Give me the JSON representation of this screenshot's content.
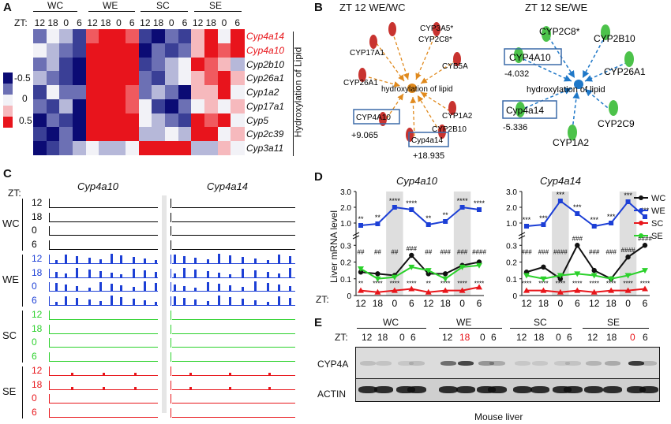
{
  "panel_labels": {
    "a": "A",
    "b": "B",
    "c": "C",
    "d": "D",
    "e": "E"
  },
  "panelA": {
    "groups": [
      "WC",
      "WE",
      "SC",
      "SE"
    ],
    "zt_prefix": "ZT:",
    "zt": [
      "12",
      "18",
      "0",
      "6",
      "12",
      "18",
      "0",
      "6",
      "12",
      "18",
      "0",
      "6",
      "12",
      "18",
      "0",
      "6"
    ],
    "genes": [
      "Cyp4a14",
      "Cyp4a10",
      "Cyp2b10",
      "Cyp26a1",
      "Cyp1a2",
      "Cyp17a1",
      "Cyp5",
      "Cyp2c39",
      "Cyp3a11"
    ],
    "highlight_genes": [
      "Cyp4a14",
      "Cyp4a10"
    ],
    "legend": [
      "-0.5",
      "0",
      "0.5"
    ],
    "side_label": "Hydroxylation of Lipid",
    "colors": {
      "deep_red": "#e8141c",
      "red": "#f05a5f",
      "light_red": "#f6b9bd",
      "white": "#f2f2f7",
      "light_blue": "#b6b8d9",
      "blue": "#6c70b4",
      "mid_blue": "#3a3f96",
      "deep_blue": "#0b0b74"
    },
    "matrix": [
      [
        "b",
        "w",
        "lb",
        "B",
        "r",
        "R",
        "R",
        "r",
        "B",
        "D",
        "b",
        "B",
        "lr",
        "R",
        "w",
        "R"
      ],
      [
        "w",
        "lb",
        "b",
        "B",
        "R",
        "R",
        "R",
        "R",
        "D",
        "b",
        "B",
        "b",
        "lr",
        "R",
        "r",
        "R"
      ],
      [
        "b",
        "lb",
        "B",
        "D",
        "R",
        "R",
        "R",
        "R",
        "B",
        "b",
        "lb",
        "w",
        "R",
        "r",
        "lr",
        "lb"
      ],
      [
        "lb",
        "b",
        "B",
        "D",
        "R",
        "R",
        "R",
        "R",
        "b",
        "B",
        "lb",
        "w",
        "lr",
        "r",
        "R",
        "lr"
      ],
      [
        "B",
        "w",
        "b",
        "b",
        "R",
        "R",
        "R",
        "r",
        "b",
        "lb",
        "b",
        "D",
        "lr",
        "lr",
        "R",
        "w"
      ],
      [
        "b",
        "B",
        "lb",
        "D",
        "R",
        "R",
        "R",
        "r",
        "w",
        "B",
        "D",
        "b",
        "w",
        "lr",
        "w",
        "lr"
      ],
      [
        "D",
        "b",
        "B",
        "D",
        "R",
        "R",
        "R",
        "R",
        "w",
        "lb",
        "b",
        "B",
        "R",
        "r",
        "R",
        "w"
      ],
      [
        "B",
        "D",
        "b",
        "D",
        "R",
        "R",
        "R",
        "R",
        "lb",
        "lb",
        "w",
        "lb",
        "R",
        "R",
        "w",
        "lr"
      ],
      [
        "D",
        "B",
        "b",
        "lb",
        "w",
        "lb",
        "lb",
        "w",
        "R",
        "R",
        "R",
        "R",
        "lb",
        "lb",
        "lr",
        "w"
      ]
    ]
  },
  "panelB": {
    "left": {
      "title": "ZT 12 WE/WC",
      "center": "hydroxylation of lipid",
      "nodes": [
        "CYP3A5*",
        "CYP2C8*",
        "CYP17A1",
        "CYB5A",
        "CYP26A1",
        "CYP1A2",
        "CYP4A10",
        "Cyp4a14",
        "CYP2B10"
      ],
      "values": [
        "+9.065",
        "+18.935"
      ]
    },
    "right": {
      "title": "ZT 12 SE/WE",
      "center": "hydroxylation of lipid",
      "nodes": [
        "CYP2C8*",
        "CYP2B10",
        "CYP4A10",
        "CYP26A1",
        "Cyp4a14",
        "CYP2C9",
        "CYP1A2"
      ],
      "values": [
        "-4.032",
        "-5.336"
      ]
    },
    "colors": {
      "left_arrow": "#e08a1e",
      "right_arrow": "#1f78c8",
      "red_node": "#c8332f",
      "green_node": "#4cc24a",
      "box": "#3b6aa8"
    }
  },
  "panelC": {
    "zt_label": "ZT:",
    "titles": [
      "Cyp4a10",
      "Cyp4a14"
    ],
    "groups": [
      {
        "name": "WC",
        "color": "#000000",
        "rows": [
          "12",
          "18",
          "0",
          "6"
        ]
      },
      {
        "name": "WE",
        "color": "#1c3fd6",
        "rows": [
          "12",
          "18",
          "0",
          "6"
        ]
      },
      {
        "name": "SC",
        "color": "#2bd12b",
        "rows": [
          "12",
          "18",
          "0",
          "6"
        ]
      },
      {
        "name": "SE",
        "color": "#e8161b",
        "rows": [
          "12",
          "18",
          "0",
          "6"
        ]
      }
    ]
  },
  "panelD": {
    "ylabel": "Liver mRNA level",
    "zt_label": "ZT:",
    "x_ticks": [
      "12",
      "18",
      "0",
      "6",
      "12",
      "18",
      "0",
      "6"
    ],
    "legend": [
      {
        "name": "WC",
        "color": "#111111"
      },
      {
        "name": "WE",
        "color": "#1c3fd6"
      },
      {
        "name": "SC",
        "color": "#e8161b"
      },
      {
        "name": "SE",
        "color": "#2bd12b"
      }
    ],
    "chart_data": [
      {
        "type": "line",
        "title": "Cyp4a10",
        "x": [
          "12",
          "18",
          "0",
          "6",
          "12",
          "18",
          "0",
          "6"
        ],
        "yticks_upper": [
          "1.0",
          "2.0",
          "3.0"
        ],
        "yticks_lower": [
          "0",
          "0.1",
          "0.2",
          "0.3"
        ],
        "series": [
          {
            "name": "WC",
            "values": [
              0.14,
              0.13,
              0.12,
              0.24,
              0.13,
              0.13,
              0.18,
              0.2
            ]
          },
          {
            "name": "WE",
            "values": [
              0.85,
              0.95,
              2.0,
              1.85,
              0.9,
              1.1,
              2.0,
              1.85
            ]
          },
          {
            "name": "SC",
            "values": [
              0.03,
              0.02,
              0.03,
              0.04,
              0.02,
              0.03,
              0.03,
              0.05
            ]
          },
          {
            "name": "SE",
            "values": [
              0.16,
              0.1,
              0.11,
              0.17,
              0.15,
              0.1,
              0.17,
              0.18
            ]
          }
        ],
        "annotations": {
          "WE": [
            "**",
            "**",
            "****",
            "****",
            "**",
            "**",
            "****",
            "****"
          ],
          "hash": [
            "##",
            "##",
            "##",
            "###",
            "##",
            "###",
            "###",
            "####"
          ],
          "SC": [
            "**",
            "****",
            "****",
            "****",
            "**",
            "****",
            "****",
            "****"
          ]
        }
      },
      {
        "type": "line",
        "title": "Cyp4a14",
        "x": [
          "12",
          "18",
          "0",
          "6",
          "12",
          "18",
          "0",
          "6"
        ],
        "yticks_upper": [
          "1.0",
          "2.0",
          "3.0"
        ],
        "yticks_lower": [
          "0",
          "0.1",
          "0.2",
          "0.3"
        ],
        "series": [
          {
            "name": "WC",
            "values": [
              0.14,
              0.17,
              0.1,
              0.3,
              0.15,
              0.1,
              0.23,
              0.3
            ]
          },
          {
            "name": "WE",
            "values": [
              0.8,
              0.9,
              2.4,
              1.6,
              0.8,
              1.0,
              2.35,
              1.4
            ]
          },
          {
            "name": "SC",
            "values": [
              0.03,
              0.03,
              0.02,
              0.03,
              0.02,
              0.03,
              0.03,
              0.04
            ]
          },
          {
            "name": "SE",
            "values": [
              0.12,
              0.1,
              0.12,
              0.13,
              0.12,
              0.1,
              0.12,
              0.15
            ]
          }
        ],
        "annotations": {
          "WE": [
            "***",
            "***",
            "***",
            "***",
            "***",
            "***",
            "***",
            "***"
          ],
          "hash": [
            "###",
            "###",
            "####",
            "###",
            "###",
            "###",
            "####",
            "####"
          ],
          "SC": [
            "****",
            "****",
            "****",
            "****",
            "****",
            "****",
            "****",
            "****"
          ]
        }
      }
    ]
  },
  "panelE": {
    "groups": [
      "WC",
      "WE",
      "SC",
      "SE"
    ],
    "zt_prefix": "ZT:",
    "zt": [
      "12",
      "18",
      "0",
      "6",
      "12",
      "18",
      "0",
      "6",
      "12",
      "18",
      "0",
      "6",
      "12",
      "18",
      "0",
      "6"
    ],
    "red_zt_index": [
      5,
      14
    ],
    "rows": [
      "CYP4A",
      "ACTIN"
    ],
    "caption": "Mouse liver"
  }
}
